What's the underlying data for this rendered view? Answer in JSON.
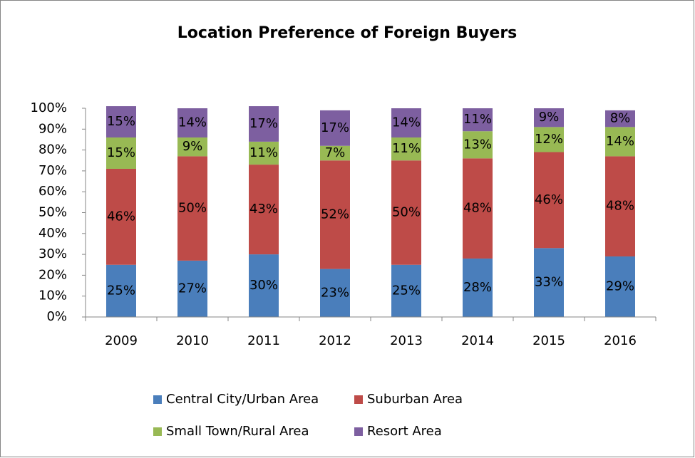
{
  "chart_data": {
    "type": "stacked_bar",
    "title": "Location Preference of Foreign Buyers",
    "categories": [
      "2009",
      "2010",
      "2011",
      "2012",
      "2013",
      "2014",
      "2015",
      "2016"
    ],
    "series": [
      {
        "name": "Central City/Urban Area",
        "color": "#4a7ebb",
        "values": [
          25,
          27,
          30,
          23,
          25,
          28,
          33,
          29
        ],
        "value_labels": [
          "25%",
          "27%",
          "30%",
          "23%",
          "25%",
          "28%",
          "33%",
          "29%"
        ]
      },
      {
        "name": "Suburban Area",
        "color": "#be4b48",
        "values": [
          46,
          50,
          43,
          52,
          50,
          48,
          46,
          48
        ],
        "value_labels": [
          "46%",
          "50%",
          "43%",
          "52%",
          "50%",
          "48%",
          "46%",
          "48%"
        ]
      },
      {
        "name": "Small Town/Rural Area",
        "color": "#98b954",
        "values": [
          15,
          9,
          11,
          7,
          11,
          13,
          12,
          14
        ],
        "value_labels": [
          "15%",
          "9%",
          "11%",
          "7%",
          "11%",
          "13%",
          "12%",
          "14%"
        ]
      },
      {
        "name": "Resort Area",
        "color": "#7d5fa0",
        "values": [
          15,
          14,
          17,
          17,
          14,
          11,
          9,
          8
        ],
        "value_labels": [
          "15%",
          "14%",
          "17%",
          "17%",
          "14%",
          "11%",
          "9%",
          "8%"
        ]
      }
    ],
    "ylim": [
      0,
      100
    ],
    "yticks": [
      {
        "value": 0,
        "label": "0%"
      },
      {
        "value": 10,
        "label": "10%"
      },
      {
        "value": 20,
        "label": "20%"
      },
      {
        "value": 30,
        "label": "30%"
      },
      {
        "value": 40,
        "label": "40%"
      },
      {
        "value": 50,
        "label": "50%"
      },
      {
        "value": 60,
        "label": "60%"
      },
      {
        "value": 70,
        "label": "70%"
      },
      {
        "value": 80,
        "label": "80%"
      },
      {
        "value": 90,
        "label": "90%"
      },
      {
        "value": 100,
        "label": "100%"
      }
    ],
    "legend": "bottom"
  }
}
